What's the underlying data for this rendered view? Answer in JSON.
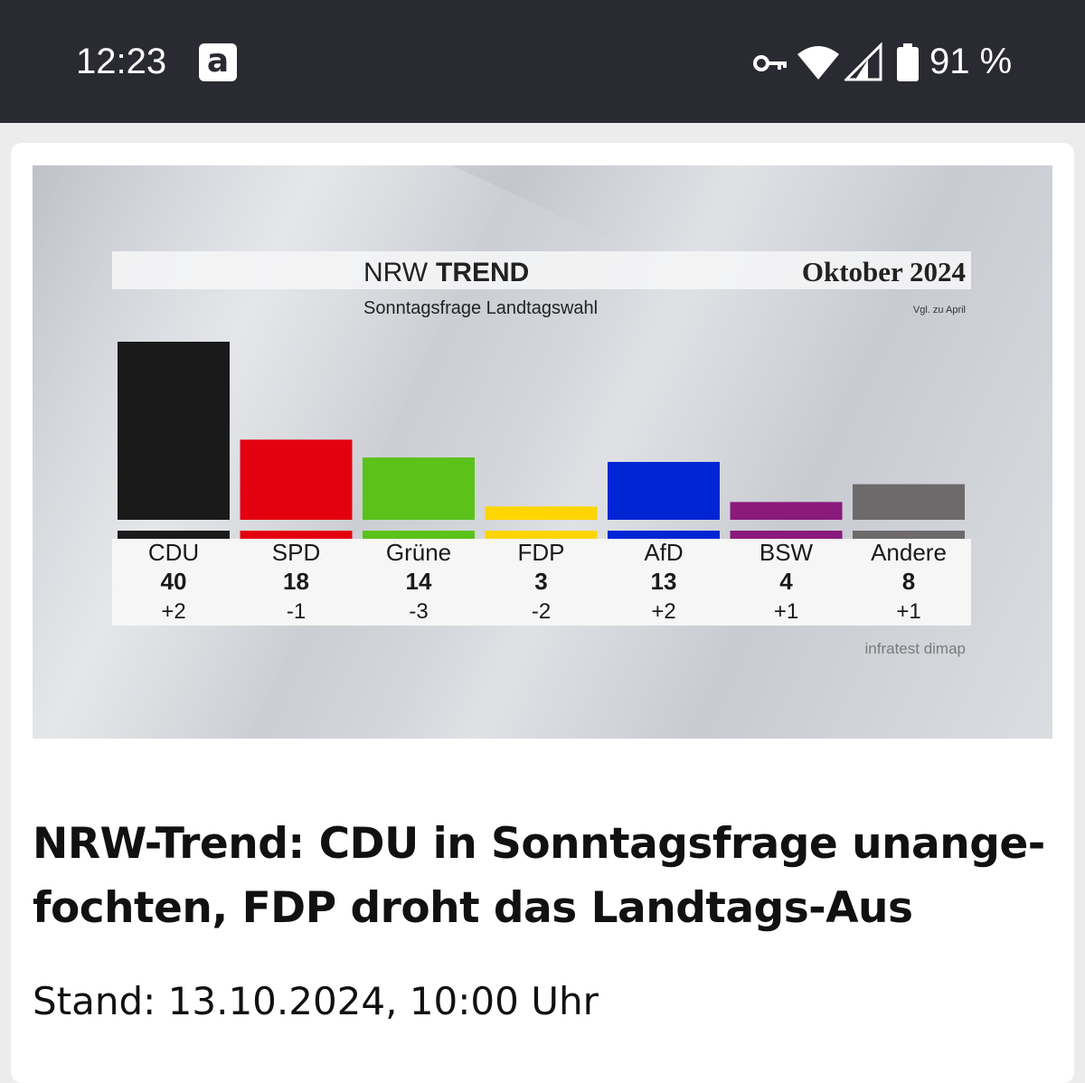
{
  "status_bar": {
    "time": "12:23",
    "app_icon_letter": "a",
    "icons": [
      "vpn-key-icon",
      "wifi-icon",
      "cell-signal-icon",
      "battery-icon"
    ],
    "battery_percent": "91 %"
  },
  "article": {
    "headline": "NRW-Trend: CDU in Sonntagsfrage unange-fochten, FDP droht das Landtags-Aus",
    "dateline": "Stand: 13.10.2024, 10:00 Uhr"
  },
  "chart_data": {
    "type": "bar",
    "title_light": "NRW",
    "title_bold": "TREND",
    "subtitle": "Sonntagsfrage Landtagswahl",
    "date_label": "Oktober 2024",
    "comparison_note": "Vgl. zu April",
    "source": "infratest dimap",
    "categories": [
      "CDU",
      "SPD",
      "Grüne",
      "FDP",
      "AfD",
      "BSW",
      "Andere"
    ],
    "values": [
      40,
      18,
      14,
      3,
      13,
      4,
      8
    ],
    "value_labels": [
      "40",
      "18",
      "14",
      "3",
      "13",
      "4",
      "8"
    ],
    "changes": [
      "+2",
      "-1",
      "-3",
      "-2",
      "+2",
      "+1",
      "+1"
    ],
    "colors": [
      "#1a1a1a",
      "#e3000f",
      "#5ac21a",
      "#ffd500",
      "#0025d4",
      "#8a1a7c",
      "#6e6a6b"
    ],
    "ylim": [
      0,
      40
    ]
  }
}
